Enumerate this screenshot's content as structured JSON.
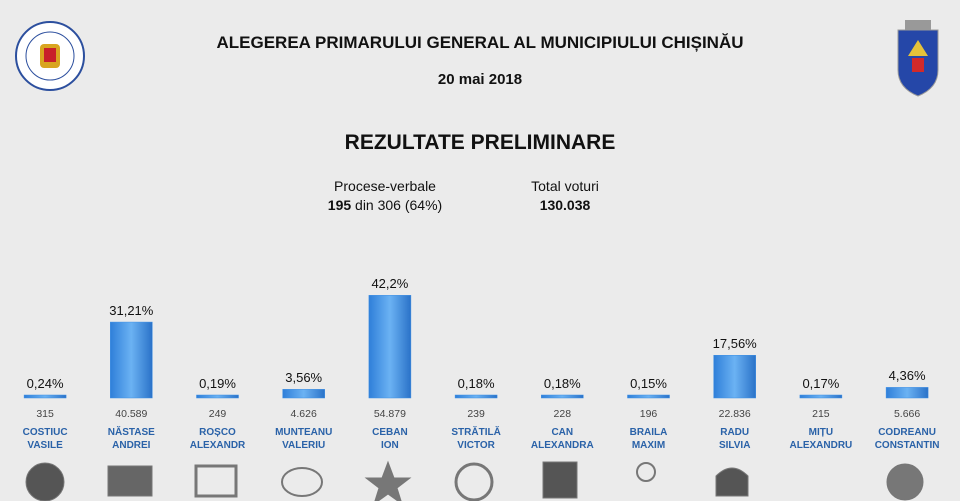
{
  "chart_data": {
    "type": "bar",
    "title": "ALEGEREA PRIMARULUI GENERAL AL MUNICIPIULUI CHIȘINĂU",
    "subtitle": "20 mai 2018",
    "heading": "REZULTATE PRELIMINARE",
    "stats": [
      {
        "label": "Procese-verbale",
        "value_bold": "195",
        "value_rest": "din 306 (64%)"
      },
      {
        "label": "Total voturi",
        "value_bold": "130.038"
      }
    ],
    "categories": [
      "COSTIUC\nVASILE",
      "NĂSTASE\nANDREI",
      "ROȘCO\nALEXANDR",
      "MUNTEANU\nVALERIU",
      "CEBAN\nION",
      "STRĂTILĂ\nVICTOR",
      "CAN\nALEXANDRA",
      "BRAILA\nMAXIM",
      "RADU\nSILVIA",
      "MIȚU\nALEXANDRU",
      "CODREANU\nCONSTANTIN"
    ],
    "values": [
      0.24,
      31.21,
      0.19,
      3.56,
      42.2,
      0.18,
      0.18,
      0.15,
      17.56,
      0.17,
      4.36
    ],
    "value_labels": [
      "0,24%",
      "31,21%",
      "0,19%",
      "3,56%",
      "42,2%",
      "0,18%",
      "0,18%",
      "0,15%",
      "17,56%",
      "0,17%",
      "4,36%"
    ],
    "vote_labels": [
      "315",
      "40.589",
      "249",
      "4.626",
      "54.879",
      "239",
      "228",
      "196",
      "22.836",
      "215",
      "5.666"
    ],
    "ylim": [
      0,
      60
    ],
    "color": "#3d8ee3"
  }
}
